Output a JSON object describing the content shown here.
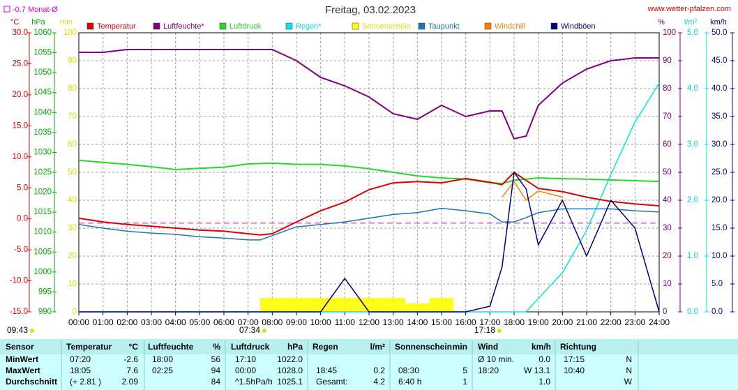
{
  "chart_data": {
    "type": "line",
    "title": "Freitag, 03.02.2023",
    "source": "www.wetter-pfalzen.com",
    "monthly_avg": {
      "value": -0.7,
      "label": "-0.7 Monat-Ø"
    },
    "grid": true,
    "x": [
      0,
      1,
      2,
      3,
      4,
      5,
      6,
      7,
      7.5,
      8,
      9,
      10,
      11,
      12,
      13,
      14,
      15,
      16,
      17,
      17.5,
      18,
      18.5,
      19,
      20,
      21,
      22,
      23,
      24
    ],
    "xlim": [
      0,
      24
    ],
    "xticks": [
      {
        "value": 0,
        "label": "00:00"
      },
      {
        "value": 1,
        "label": "01:00"
      },
      {
        "value": 2,
        "label": "02:00"
      },
      {
        "value": 3,
        "label": "03:00"
      },
      {
        "value": 4,
        "label": "04:00"
      },
      {
        "value": 5,
        "label": "05:00"
      },
      {
        "value": 6,
        "label": "06:00"
      },
      {
        "value": 7,
        "label": "07:00"
      },
      {
        "value": 8,
        "label": "08:00"
      },
      {
        "value": 9,
        "label": "09:00"
      },
      {
        "value": 10,
        "label": "10:00"
      },
      {
        "value": 11,
        "label": "11:00"
      },
      {
        "value": 12,
        "label": "12:00"
      },
      {
        "value": 13,
        "label": "13:00"
      },
      {
        "value": 14,
        "label": "14:00"
      },
      {
        "value": 15,
        "label": "15:00"
      },
      {
        "value": 16,
        "label": "16:00"
      },
      {
        "value": 17,
        "label": "17:00"
      },
      {
        "value": 18,
        "label": "18:00"
      },
      {
        "value": 19,
        "label": "19:00"
      },
      {
        "value": 20,
        "label": "20:00"
      },
      {
        "value": 21,
        "label": "21:00"
      },
      {
        "value": 22,
        "label": "22:00"
      },
      {
        "value": 23,
        "label": "23:00"
      },
      {
        "value": 24,
        "label": "24:00"
      }
    ],
    "axes": {
      "temp": {
        "label": "°C",
        "color": "#e00000",
        "lim": [
          -15,
          30
        ],
        "ticks": [
          {
            "value": -15,
            "label": "-15.0"
          },
          {
            "value": -10,
            "label": "-10.0"
          },
          {
            "value": -5,
            "label": "-5.0"
          },
          {
            "value": 0,
            "label": "0.0"
          },
          {
            "value": 5,
            "label": "5.0"
          },
          {
            "value": 10,
            "label": "10.0"
          },
          {
            "value": 15,
            "label": "15.0"
          },
          {
            "value": 20,
            "label": "20.0"
          },
          {
            "value": 25,
            "label": "25.0"
          },
          {
            "value": 30,
            "label": "30.0"
          }
        ]
      },
      "hpa": {
        "label": "hPa",
        "color": "#00b000",
        "lim": [
          990,
          1060
        ],
        "ticks": [
          990,
          995,
          1000,
          1005,
          1010,
          1015,
          1020,
          1025,
          1030,
          1035,
          1040,
          1045,
          1050,
          1055,
          1060
        ]
      },
      "min": {
        "label": "min",
        "color": "#e0e000",
        "lim": [
          0,
          100
        ],
        "ticks": [
          0,
          10,
          20,
          30,
          40,
          50,
          60,
          70,
          80,
          90,
          100
        ]
      },
      "pct": {
        "label": "%",
        "color": "#800080",
        "lim": [
          0,
          100
        ],
        "ticks": [
          0,
          10,
          20,
          30,
          40,
          50,
          60,
          70,
          80,
          90,
          100
        ]
      },
      "rain": {
        "label": "l/m²",
        "color": "#00d8d8",
        "lim": [
          0,
          5
        ],
        "ticks": [
          {
            "value": 0,
            "label": "0.0"
          },
          {
            "value": 1,
            "label": "1.0"
          },
          {
            "value": 2,
            "label": "2.0"
          },
          {
            "value": 3,
            "label": "3.0"
          },
          {
            "value": 4,
            "label": "4.0"
          },
          {
            "value": 5,
            "label": "5.0"
          }
        ]
      },
      "wind": {
        "label": "km/h",
        "color": "#000080",
        "lim": [
          0,
          50
        ],
        "ticks": [
          {
            "value": 0,
            "label": "0.0"
          },
          {
            "value": 5,
            "label": "5.0"
          },
          {
            "value": 10,
            "label": "10.0"
          },
          {
            "value": 15,
            "label": "15.0"
          },
          {
            "value": 20,
            "label": "20.0"
          },
          {
            "value": 25,
            "label": "25.0"
          },
          {
            "value": 30,
            "label": "30.0"
          },
          {
            "value": 35,
            "label": "35.0"
          },
          {
            "value": 40,
            "label": "40.0"
          },
          {
            "value": 45,
            "label": "45.0"
          },
          {
            "value": 50,
            "label": "50.0"
          }
        ]
      }
    },
    "series": [
      {
        "name": "Temperatur",
        "color": "#e00000",
        "axis": "temp",
        "values": [
          0.1,
          -0.5,
          -0.9,
          -1.2,
          -1.5,
          -1.8,
          -2.0,
          -2.4,
          -2.6,
          -2.4,
          -0.5,
          1.3,
          2.7,
          4.7,
          5.8,
          6.0,
          5.8,
          6.5,
          5.9,
          5.5,
          7.5,
          6.2,
          4.9,
          4.4,
          3.5,
          2.8,
          2.4,
          2.1
        ]
      },
      {
        "name": "Luftfeuchte*",
        "color": "#800080",
        "axis": "pct",
        "values": [
          93,
          93,
          94,
          94,
          94,
          94,
          94,
          94,
          94,
          94,
          90,
          84,
          81,
          77,
          71,
          69,
          74,
          70,
          72,
          72,
          62,
          63,
          74,
          82,
          87,
          90,
          91,
          91
        ]
      },
      {
        "name": "Luftdruck",
        "color": "#22dd22",
        "axis": "hpa",
        "values": [
          1028.0,
          1027.5,
          1027.0,
          1026.4,
          1025.7,
          1026.0,
          1026.3,
          1027.1,
          1027.2,
          1027.3,
          1027.0,
          1027.0,
          1026.6,
          1025.9,
          1025.0,
          1024.1,
          1023.6,
          1023.3,
          1022.4,
          1022.2,
          1023.0,
          1023.3,
          1023.6,
          1023.4,
          1023.3,
          1023.1,
          1022.9,
          1022.7
        ]
      },
      {
        "name": "Regen*",
        "color": "#00e8e8",
        "axis": "rain",
        "values": [
          0,
          0,
          0,
          0,
          0,
          0,
          0,
          0,
          0,
          0,
          0,
          0,
          0,
          0,
          0,
          0,
          0,
          0,
          0,
          0,
          0,
          0,
          0.24,
          0.7,
          1.46,
          2.46,
          3.4,
          4.1
        ]
      },
      {
        "name": "Sonnenschein",
        "color": "#ffff00",
        "axis": "min",
        "style": "bars",
        "values": [
          0,
          0,
          0,
          0,
          0,
          0,
          0,
          0,
          0,
          5,
          5,
          5,
          5,
          5,
          5,
          3,
          5,
          0,
          0,
          0,
          0,
          0,
          0,
          0,
          0,
          0,
          0,
          0
        ]
      },
      {
        "name": "Taupunkt",
        "color": "#1c75bc",
        "axis": "temp",
        "values": [
          -0.9,
          -1.5,
          -2.0,
          -2.3,
          -2.5,
          -2.9,
          -3.1,
          -3.4,
          -3.4,
          -2.7,
          -1.3,
          -0.9,
          -0.5,
          0.1,
          0.7,
          1.0,
          1.7,
          1.3,
          0.8,
          -0.5,
          -0.5,
          0.2,
          1.0,
          1.6,
          1.6,
          1.6,
          1.3,
          1.1
        ]
      },
      {
        "name": "Windchill",
        "color": "#ff8000",
        "axis": "temp",
        "values": [
          null,
          null,
          null,
          null,
          null,
          null,
          null,
          null,
          null,
          null,
          null,
          null,
          null,
          null,
          null,
          null,
          null,
          null,
          null,
          3.5,
          6.0,
          3.0,
          4.5,
          3.5,
          null,
          null,
          null,
          null
        ]
      },
      {
        "name": "Windböen",
        "color": "#000080",
        "axis": "wind",
        "values": [
          0,
          0,
          0,
          0,
          0,
          0,
          0,
          0,
          0,
          0,
          0,
          0,
          6,
          0,
          0,
          0,
          0,
          0,
          1,
          8,
          25,
          22,
          12,
          20,
          10,
          20,
          15,
          0
        ]
      }
    ],
    "annotations": [
      "09:43",
      "07:34",
      "17:18"
    ]
  },
  "table": {
    "header": [
      "Sensor",
      "Temperatur",
      "°C",
      "Luftfeuchte",
      "%",
      "Luftdruck",
      "hPa",
      "Regen",
      "l/m²",
      "Sonnenschein",
      "min",
      "Wind",
      "km/h",
      "Richtung"
    ],
    "rows": [
      [
        "MinWert",
        "07:20",
        "-2.6",
        "18:00",
        "56",
        "17:10",
        "1022.0",
        null,
        null,
        null,
        null,
        "Ø 10 min.",
        "0.0",
        "17:15",
        "N"
      ],
      [
        "MaxWert",
        "18:05",
        "7.6",
        "02:25",
        "94",
        "00:00",
        "1028.0",
        "18:45",
        "0.2",
        "08:30",
        "5",
        "18:20",
        "W 13.1",
        "10:40",
        "N"
      ],
      [
        "Durchschnitt",
        "(+ 2.81 )",
        "2.09",
        null,
        "84",
        "^1.5hPa/h",
        "1025.1",
        "Gesamt:",
        "4.2",
        "6:40 h",
        "1",
        null,
        "1.0",
        null,
        "W"
      ]
    ]
  }
}
